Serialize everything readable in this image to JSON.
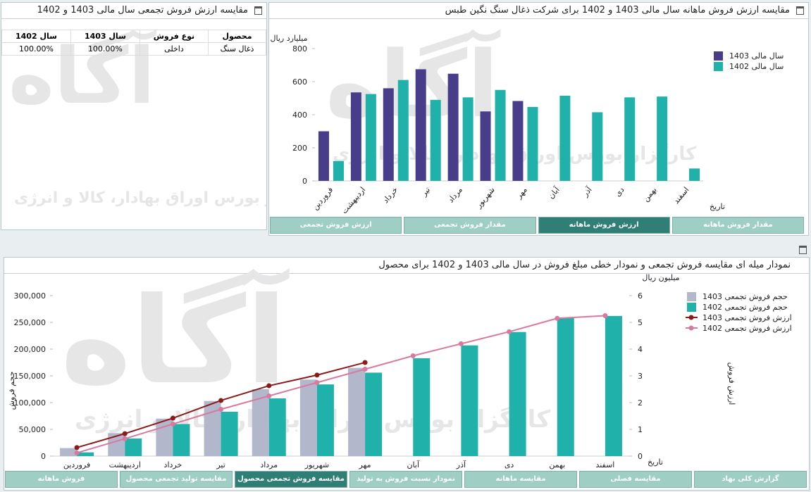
{
  "watermark": {
    "logo": "آگاه",
    "text": "کارگزار بورس اوراق بهادار، کالا و انرژی"
  },
  "summary_panel": {
    "title": "مقایسه ارزش فروش تجمعی سال مالی 1403 و 1402",
    "table": {
      "headers": [
        "محصول",
        "نوع فروش",
        "سال 1403",
        "سال 1402"
      ],
      "rows": [
        [
          "ذغال سنگ",
          "داخلی",
          "100.00%",
          "100.00%"
        ]
      ]
    }
  },
  "chart_data": [
    {
      "type": "bar",
      "title": "مقایسه ارزش فروش ماهانه سال مالی 1403 و 1402 برای شرکت ذغال سنگ نگین طبس",
      "y_label": "میلیارد ریال",
      "x_label": "تاریخ",
      "categories": [
        "فروردین",
        "اردیبهشت",
        "خرداد",
        "تیر",
        "مرداد",
        "شهریور",
        "مهر",
        "آبان",
        "آذر",
        "دی",
        "بهمن",
        "اسفند"
      ],
      "series": [
        {
          "name": "سال مالی 1403",
          "type": "bar",
          "color": "#483d8b",
          "values": [
            300,
            535,
            560,
            675,
            648,
            420,
            483,
            null,
            null,
            null,
            null,
            null
          ]
        },
        {
          "name": "سال مالی 1402",
          "type": "bar",
          "color": "#20b2aa",
          "values": [
            120,
            525,
            610,
            490,
            505,
            550,
            447,
            515,
            415,
            505,
            510,
            75
          ]
        }
      ],
      "ylim": [
        0,
        800
      ],
      "yticks": [
        0,
        200,
        400,
        600,
        800
      ],
      "grid": false,
      "legend": "right",
      "tabs": [
        "ارزش فروش تجمعی",
        "مقدار فروش تجمعی",
        "ارزش فروش ماهانه",
        "مقدار فروش ماهانه"
      ],
      "active_tab": 2
    },
    {
      "type": "combo",
      "title": "نمودار میله ای مقایسه فروش تجمعی و نمودار خطی مبلغ فروش در سال مالی 1403 و 1402 برای محصول",
      "y_label": "حجم فروش",
      "y2_label": "ارزش فروش",
      "y2_unit": "میلیون ریال",
      "x_label": "تاریخ",
      "categories": [
        "فروردین",
        "اردیبهشت",
        "خرداد",
        "تیر",
        "مرداد",
        "شهریور",
        "مهر",
        "آبان",
        "آذر",
        "دی",
        "بهمن",
        "اسفند"
      ],
      "series": [
        {
          "name": "حجم فروش تجمعی 1403",
          "type": "bar",
          "color": "#b3b7cc",
          "values": [
            15000,
            43000,
            70000,
            103000,
            125000,
            143000,
            165000,
            null,
            null,
            null,
            null,
            null
          ]
        },
        {
          "name": "حجم فروش تجمعی 1402",
          "type": "bar",
          "color": "#20b2aa",
          "values": [
            7000,
            33000,
            60000,
            83000,
            108000,
            134000,
            156000,
            183000,
            207000,
            232000,
            258000,
            262000
          ]
        },
        {
          "name": "ارزش فروش تجمعی 1403",
          "type": "line",
          "axis": "y2",
          "color": "#8b1a1a",
          "values": [
            0.32,
            0.84,
            1.42,
            2.08,
            2.63,
            3.03,
            3.5,
            null,
            null,
            null,
            null,
            null
          ]
        },
        {
          "name": "ارزش فروش تجمعی 1402",
          "type": "line",
          "axis": "y2",
          "color": "#d9799f",
          "values": [
            0.12,
            0.65,
            1.2,
            1.75,
            2.25,
            2.75,
            3.25,
            3.75,
            4.2,
            4.65,
            5.15,
            5.25
          ]
        }
      ],
      "ylim": [
        0,
        300000
      ],
      "yticks": [
        0,
        {
          "value": 50000,
          "label": "50,000"
        },
        {
          "value": 100000,
          "label": "100,000"
        },
        {
          "value": 150000,
          "label": "150,000"
        },
        {
          "value": 200000,
          "label": "200,000"
        },
        {
          "value": 250000,
          "label": "250,000"
        },
        {
          "value": 300000,
          "label": "300,000"
        }
      ],
      "y2lim": [
        0,
        6
      ],
      "y2ticks": [
        0,
        1,
        2,
        3,
        4,
        5,
        6
      ],
      "grid": false,
      "legend": "right",
      "tabs": [
        "فروش ماهانه",
        "مقایسه تولید تجمعی محصول",
        "مقایسه فروش تجمعی محصول",
        "نمودار نسبت فروش به تولید",
        "مقایسه ماهانه",
        "مقایسه فصلی",
        "گزارش کلی بهاد"
      ],
      "active_tab": 2
    }
  ]
}
